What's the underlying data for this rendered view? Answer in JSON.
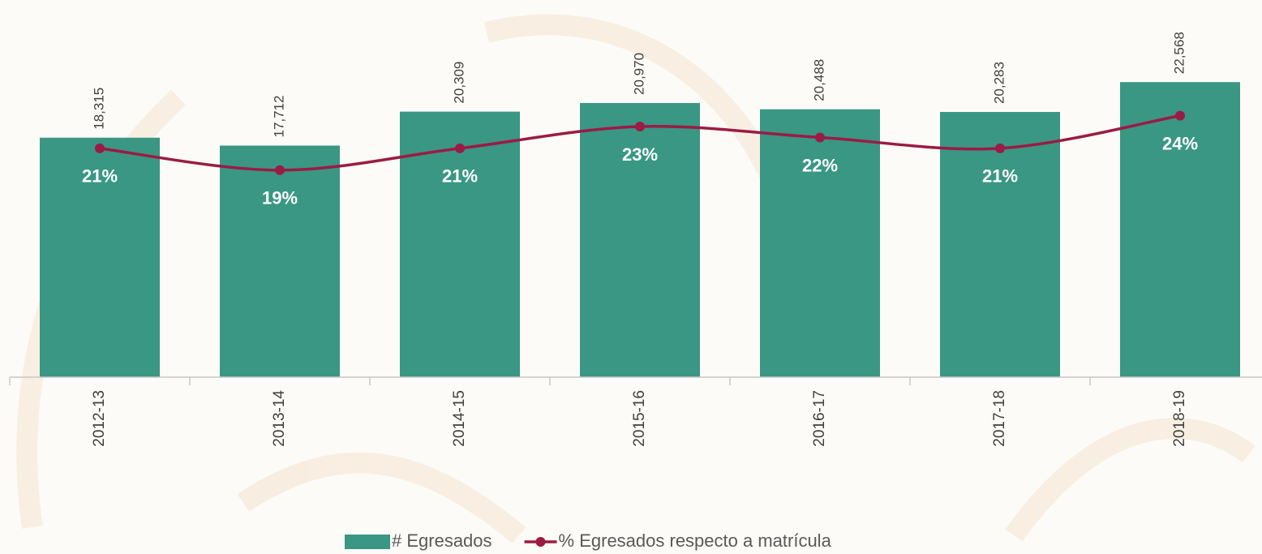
{
  "chart_data": {
    "type": "bar",
    "categories": [
      "2012-13",
      "2013-14",
      "2014-15",
      "2015-16",
      "2016-17",
      "2017-18",
      "2018-19"
    ],
    "series": [
      {
        "name": "# Egresados",
        "type": "bar",
        "color": "#3a9783",
        "values": [
          18315,
          17712,
          20309,
          20970,
          20488,
          20283,
          22568
        ],
        "value_labels": [
          "18,315",
          "17,712",
          "20,309",
          "20,970",
          "20,488",
          "20,283",
          "22,568"
        ]
      },
      {
        "name": "% Egresados respecto a matrícula",
        "type": "line",
        "axis": "y2",
        "color": "#9b1b45",
        "values": [
          21,
          19,
          21,
          23,
          22,
          21,
          24
        ],
        "value_labels": [
          "21%",
          "19%",
          "21%",
          "23%",
          "22%",
          "21%",
          "24%"
        ]
      }
    ],
    "ylim": [
      0,
      25000
    ],
    "y2lim": [
      0,
      30
    ],
    "legend": "bottom"
  }
}
